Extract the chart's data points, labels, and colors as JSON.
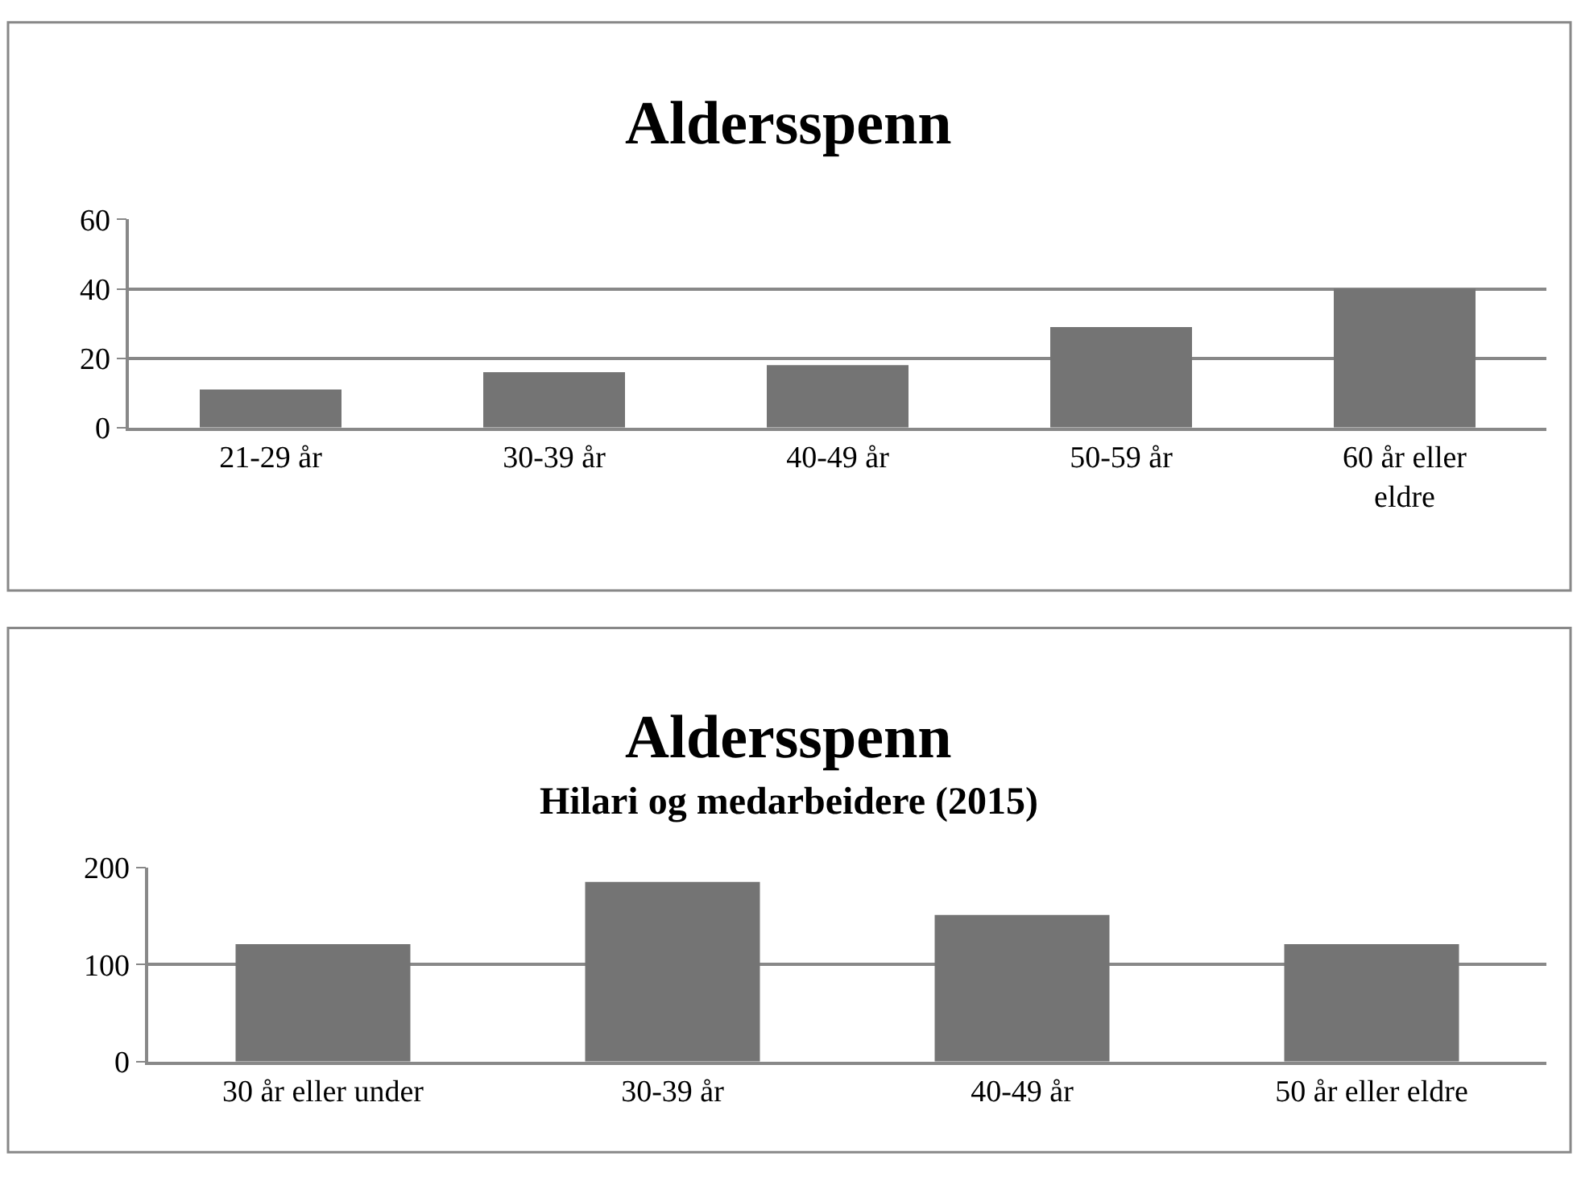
{
  "chart_data": [
    {
      "type": "bar",
      "title": "Aldersspenn",
      "categories": [
        "21-29 år",
        "30-39 år",
        "40-49 år",
        "50-59 år",
        "60 år eller eldre"
      ],
      "values": [
        11,
        16,
        18,
        29,
        40
      ],
      "color": "#747474",
      "ylim": [
        0,
        60
      ],
      "yticks": [
        0,
        20,
        40,
        60
      ],
      "grid": "y"
    },
    {
      "type": "bar",
      "title": "Aldersspenn",
      "subtitle": "Hilari og medarbeidere (2015)",
      "categories": [
        "30 år eller under",
        "30-39 år",
        "40-49 år",
        "50 år eller eldre"
      ],
      "values": [
        121,
        185,
        151,
        121
      ],
      "color": "#747474",
      "ylim": [
        0,
        200
      ],
      "yticks": [
        0,
        100,
        200
      ],
      "grid": "y"
    }
  ]
}
